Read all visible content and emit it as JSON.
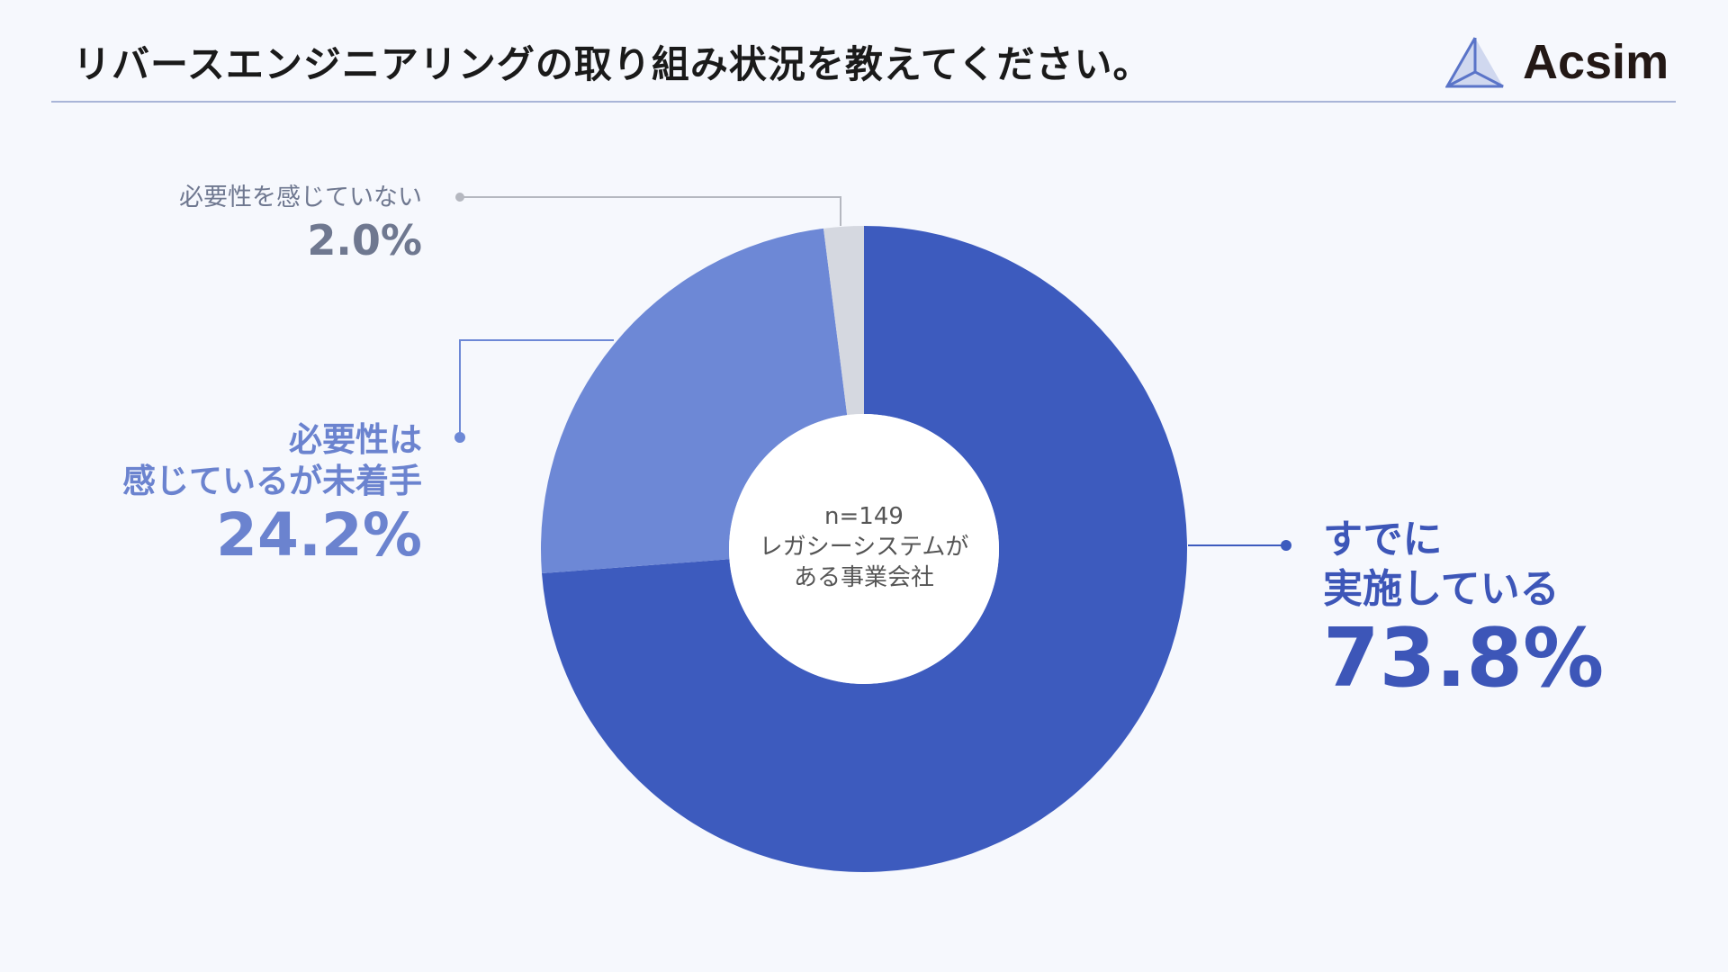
{
  "title": "リバースエンジニアリングの取り組み状況を教えてください。",
  "logo": {
    "text": "Acsim"
  },
  "chart_data": {
    "type": "pie",
    "donut": true,
    "center_text": [
      "n=149",
      "レガシーシステムが",
      "ある事業会社"
    ],
    "slices": [
      {
        "label": "すでに実施している",
        "label_lines": [
          "すでに",
          "実施している"
        ],
        "value": 73.8,
        "value_text": "73.8%",
        "color": "#3d5bbe",
        "text_color": "#3d56b8"
      },
      {
        "label": "必要性は感じているが未着手",
        "label_lines": [
          "必要性は",
          "感じているが未着手"
        ],
        "value": 24.2,
        "value_text": "24.2%",
        "color": "#6d88d6",
        "text_color": "#6b83cf"
      },
      {
        "label": "必要性を感じていない",
        "label_lines": [
          "必要性を感じていない"
        ],
        "value": 2.0,
        "value_text": "2.0%",
        "color": "#d5d8e0",
        "text_color": "#6f7890"
      }
    ]
  }
}
